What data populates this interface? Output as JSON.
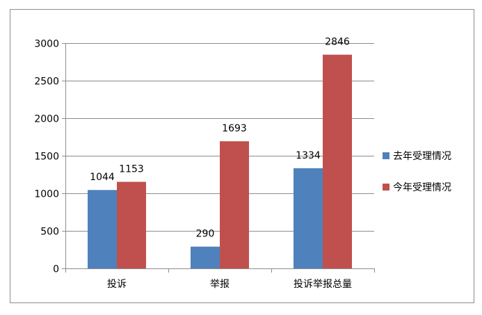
{
  "chart_data": {
    "type": "bar",
    "categories": [
      "投诉",
      "举报",
      "投诉举报总量"
    ],
    "series": [
      {
        "name": "去年受理情况",
        "values": [
          1044,
          290,
          1334
        ],
        "color": "#4F81BD"
      },
      {
        "name": "今年受理情况",
        "values": [
          1153,
          1693,
          2846
        ],
        "color": "#C0504D"
      }
    ],
    "ylim": [
      0,
      3000
    ],
    "yticks": [
      0,
      500,
      1000,
      1500,
      2000,
      2500,
      3000
    ],
    "grid": true,
    "legend": "right",
    "data_labels": true
  }
}
